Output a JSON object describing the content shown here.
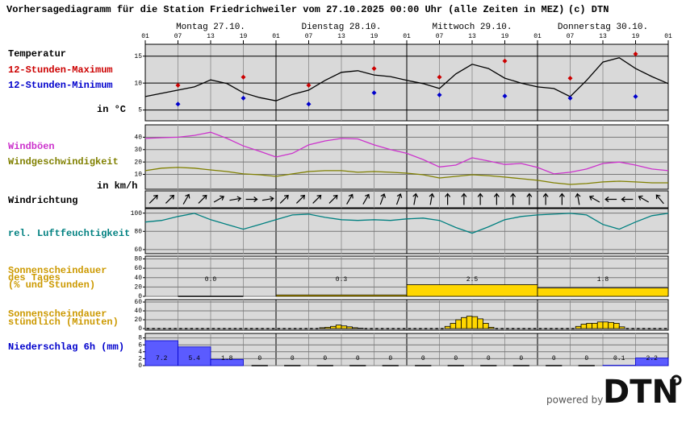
{
  "header": {
    "title": "Vorhersagediagramm für die Station Friedrichweiler vom 27.10.2025 00:00 Uhr (alle Zeiten in MEZ)",
    "credit": "(c) DTN"
  },
  "time_axis": {
    "days": [
      "Montag 27.10.",
      "Dienstag 28.10.",
      "Mittwoch 29.10.",
      "Donnerstag 30.10."
    ],
    "hours": [
      "01",
      "07",
      "13",
      "19",
      "01",
      "07",
      "13",
      "19",
      "01",
      "07",
      "13",
      "19",
      "01",
      "07",
      "13",
      "19",
      "01"
    ]
  },
  "branding": {
    "powered_by": "powered by",
    "logo": "DTN"
  },
  "chart_data": [
    {
      "type": "line",
      "unit_label": "in °C",
      "ylim": [
        3,
        17.2
      ],
      "yticks": [
        5,
        10,
        15
      ],
      "grid": true,
      "series": [
        {
          "name": "Temperatur",
          "color": "#000000",
          "style": "line",
          "values": [
            7.5,
            8.1,
            8.7,
            9.3,
            10.6,
            9.9,
            8.2,
            7.3,
            6.7,
            7.9,
            8.7,
            10.5,
            12,
            12.3,
            11.5,
            11.2,
            10.5,
            9.9,
            9.0,
            11.7,
            13.5,
            12.7,
            10.9,
            10.0,
            9.3,
            9.0,
            7.5,
            10.5,
            13.9,
            14.7,
            12.7,
            11.2,
            9.9
          ]
        },
        {
          "name": "12-Stunden-Maximum",
          "color": "#cc0000",
          "style": "marker",
          "values": [
            9.6,
            11.1,
            9.6,
            12.7,
            11.1,
            14.1,
            10.9,
            15.4
          ]
        },
        {
          "name": "12-Stunden-Minimum",
          "color": "#0000cc",
          "style": "marker",
          "values": [
            6.1,
            7.2,
            6.1,
            8.2,
            7.8,
            7.6,
            7.2,
            7.5
          ]
        }
      ]
    },
    {
      "type": "line",
      "unit_label": "in km/h",
      "ylim": [
        -2,
        50
      ],
      "yticks": [
        10,
        20,
        30,
        40
      ],
      "grid": true,
      "series": [
        {
          "name": "Windböen",
          "color": "#cc33cc",
          "style": "line",
          "values": [
            39,
            39.6,
            40,
            41.5,
            44,
            39,
            33,
            28.6,
            24,
            27,
            33.8,
            37,
            39,
            38.6,
            33.8,
            30,
            27,
            22,
            16,
            17.5,
            23.4,
            20.8,
            18,
            18.8,
            15.6,
            10.4,
            11.7,
            14.3,
            18.8,
            20,
            17.5,
            14.3,
            13
          ]
        },
        {
          "name": "Windgeschwindigkeit",
          "color": "#808000",
          "style": "line",
          "values": [
            13,
            15,
            15.6,
            15,
            13.6,
            12.3,
            10.4,
            9.7,
            8.4,
            10.4,
            12.3,
            13,
            13,
            11.7,
            12.3,
            11.7,
            11,
            9.7,
            7.1,
            8.4,
            9.7,
            9,
            7.8,
            6.5,
            5.2,
            3.2,
            1.9,
            2.6,
            3.9,
            4.5,
            3.9,
            3.2,
            3.2
          ]
        }
      ]
    },
    {
      "type": "arrows",
      "title": "Windrichtung",
      "values": [
        45,
        45,
        30,
        45,
        60,
        80,
        90,
        80,
        45,
        45,
        45,
        45,
        30,
        30,
        20,
        20,
        10,
        10,
        0,
        0,
        0,
        0,
        0,
        0,
        0,
        0,
        350,
        300,
        270,
        270,
        300,
        320
      ]
    },
    {
      "type": "line",
      "ylim": [
        55.5,
        105
      ],
      "yticks": [
        60,
        80,
        100
      ],
      "grid": true,
      "series": [
        {
          "name": "rel. Luftfeuchtigkeit",
          "color": "#008080",
          "style": "line",
          "values": [
            90.2,
            92,
            96.3,
            99.8,
            92.8,
            87.6,
            82.4,
            87.6,
            92.8,
            98,
            98.9,
            95.4,
            92.8,
            92,
            92.8,
            92,
            93.7,
            94.6,
            92,
            84.2,
            78,
            85,
            92.8,
            96.3,
            98,
            98.9,
            99.8,
            98,
            87.6,
            82.4,
            90.2,
            97.2,
            99.8
          ]
        }
      ]
    },
    {
      "type": "bar",
      "title": [
        "Sonnenscheindauer",
        "des Tages",
        "(% und Stunden)"
      ],
      "label_color": "#cc9900",
      "color": "#ffd700",
      "ylim": [
        0,
        86
      ],
      "yticks": [
        0,
        20,
        40,
        60,
        80
      ],
      "grid": true,
      "values": [
        0,
        3,
        25,
        18
      ],
      "hours": [
        {
          "value": 0,
          "label": "0.0"
        },
        {
          "value": 0.3,
          "label": "0.3"
        },
        {
          "value": 2.5,
          "label": "2.5"
        },
        {
          "value": 1.8,
          "label": "1.8"
        }
      ]
    },
    {
      "type": "bar",
      "title": [
        "Sonnenscheindauer",
        "stündlich (Minuten)"
      ],
      "label_color": "#cc9900",
      "color": "#ffd700",
      "ylim": [
        -3.6,
        65.5
      ],
      "yticks": [
        0,
        20,
        40,
        60
      ],
      "grid": true,
      "values": [
        0,
        0,
        0,
        0,
        0,
        0,
        0,
        0,
        0,
        0,
        0,
        0,
        0,
        0,
        0,
        0,
        0,
        0,
        0,
        0,
        0,
        0,
        0,
        0,
        0,
        0,
        0,
        0,
        0,
        0,
        0,
        0,
        2,
        3,
        5,
        8,
        6,
        4,
        2,
        1,
        0,
        0,
        0,
        0,
        0,
        0,
        0,
        0,
        0,
        0,
        0,
        0,
        0,
        0,
        0,
        5,
        12,
        20,
        25,
        28,
        27,
        22,
        12,
        3,
        0,
        0,
        0,
        0,
        0,
        0,
        0,
        0,
        0,
        0,
        0,
        0,
        0,
        0,
        0,
        5,
        10,
        12,
        12,
        15,
        15,
        14,
        12,
        4,
        0,
        0,
        0,
        0,
        0,
        0,
        0,
        0
      ]
    },
    {
      "type": "bar",
      "title": [
        "Niederschlag 6h (mm)"
      ],
      "label_color": "#0000cc",
      "color": "#5b5bff",
      "ylim": [
        0,
        9.3
      ],
      "yticks": [
        0,
        2,
        4,
        6,
        8
      ],
      "grid": true,
      "data_labels": true,
      "values": [
        7.2,
        5.4,
        1.8,
        0,
        0,
        0,
        0,
        0,
        0,
        0,
        0,
        0,
        0,
        0,
        0.1,
        2.2
      ]
    }
  ]
}
